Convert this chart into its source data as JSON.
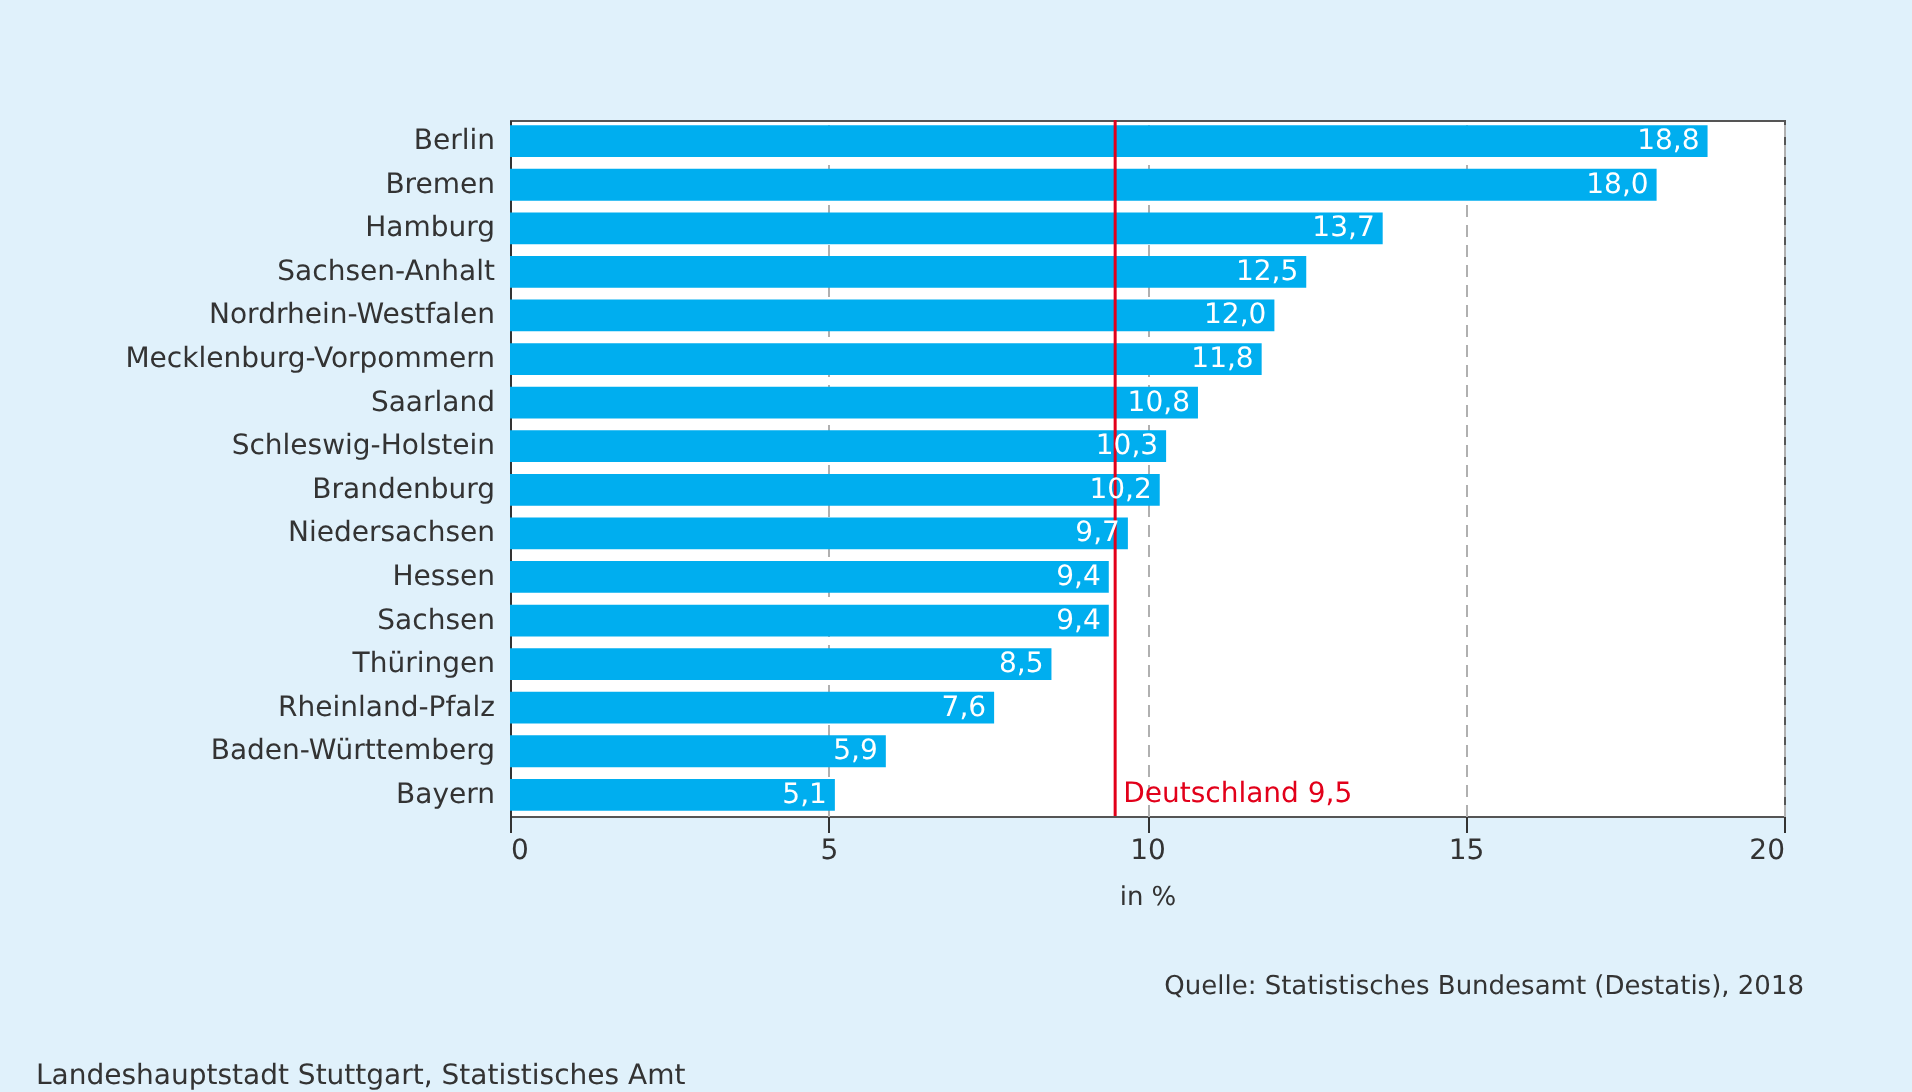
{
  "chart_data": {
    "type": "bar",
    "orientation": "horizontal",
    "categories": [
      "Berlin",
      "Bremen",
      "Hamburg",
      "Sachsen-Anhalt",
      "Nordrhein-Westfalen",
      "Mecklenburg-Vorpommern",
      "Saarland",
      "Schleswig-Holstein",
      "Brandenburg",
      "Niedersachsen",
      "Hessen",
      "Sachsen",
      "Thüringen",
      "Rheinland-Pfalz",
      "Baden-Württemberg",
      "Bayern"
    ],
    "values": [
      18.8,
      18.0,
      13.7,
      12.5,
      12.0,
      11.8,
      10.8,
      10.3,
      10.2,
      9.7,
      9.4,
      9.4,
      8.5,
      7.6,
      5.9,
      5.1
    ],
    "value_labels": [
      "18,8",
      "18,0",
      "13,7",
      "12,5",
      "12,0",
      "11,8",
      "10,8",
      "10,3",
      "10,2",
      "9,7",
      "9,4",
      "9,4",
      "8,5",
      "7,6",
      "5,9",
      "5,1"
    ],
    "color": "#00aeef",
    "xlim": [
      0,
      20
    ],
    "xticks": [
      0,
      5,
      10,
      15,
      20
    ],
    "xlabel": "in %",
    "grid": "x",
    "ref_lines": [
      {
        "axis": "x",
        "value": 9.5,
        "label": "Deutschland 9,5",
        "color": "#e2001a"
      }
    ],
    "annotations": [
      "Quelle: Statistisches Bundesamt (Destatis), 2018",
      "Landeshauptstadt Stuttgart, Statistisches Amt"
    ]
  }
}
